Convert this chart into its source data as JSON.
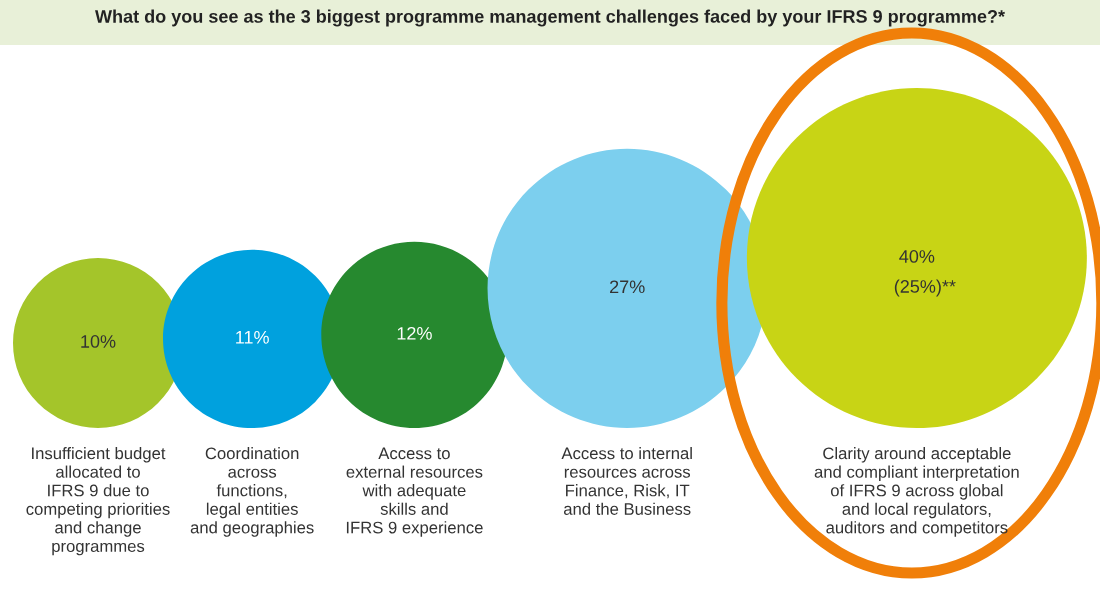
{
  "chart_data": {
    "type": "other",
    "title": "What do you see as the 3 biggest programme management challenges faced by your IFRS 9 programme?*",
    "categories": [
      "Insufficient budget\nallocated to\nIFRS 9 due to\ncompeting priorities\nand change\nprogrammes",
      "Coordination\nacross\nfunctions,\nlegal entities\nand geographies",
      "Access to\nexternal resources\nwith adequate\nskills and\nIFRS 9 experience",
      "Access to internal\nresources across\nFinance, Risk, IT\nand the Business",
      "Clarity around acceptable\nand compliant interpretation\nof IFRS 9 across global\nand local regulators,\nauditors and competitors"
    ],
    "values": [
      10,
      11,
      12,
      27,
      40
    ],
    "colors": [
      "#a4c52a",
      "#00a1de",
      "#26892f",
      "#7ccfee",
      "#c8d415"
    ],
    "value_labels": [
      "10%",
      "11%",
      "12%",
      "27%",
      "40%"
    ],
    "annotations": [
      "(25%)**"
    ]
  }
}
